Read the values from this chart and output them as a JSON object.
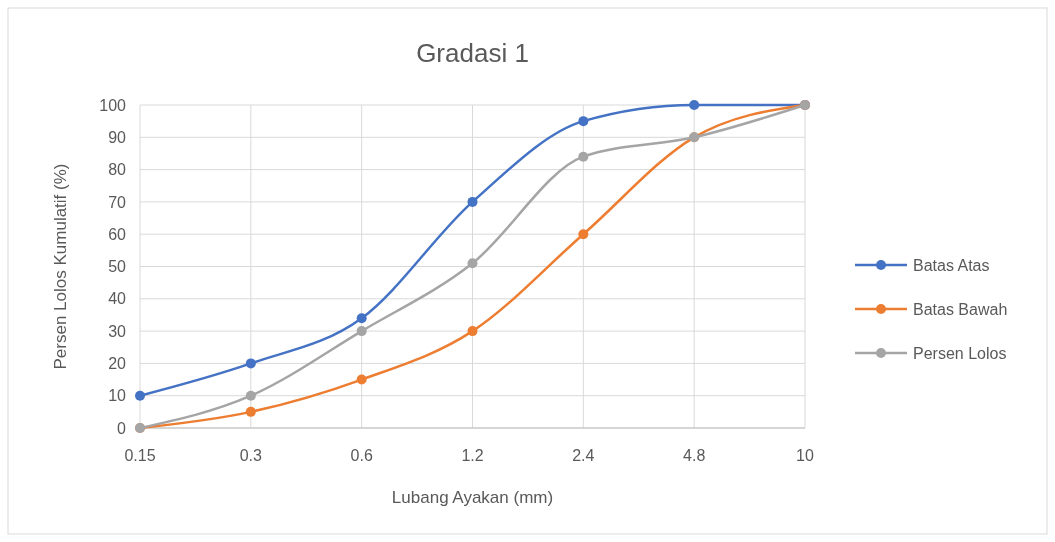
{
  "chart_data": {
    "type": "line",
    "title": "Gradasi 1",
    "xlabel": "Lubang Ayakan (mm)",
    "ylabel": "Persen Lolos Kumulatif (%)",
    "categories": [
      "0.15",
      "0.3",
      "0.6",
      "1.2",
      "2.4",
      "4.8",
      "10"
    ],
    "ylim": [
      0,
      100
    ],
    "yticks": [
      0,
      10,
      20,
      30,
      40,
      50,
      60,
      70,
      80,
      90,
      100
    ],
    "grid": true,
    "legend": "right",
    "marker": "circle",
    "line_style": "solid",
    "series": [
      {
        "name": "Batas Atas",
        "color": "#4472c4",
        "values": [
          10,
          20,
          34,
          70,
          95,
          100,
          100
        ]
      },
      {
        "name": "Batas Bawah",
        "color": "#ed7d31",
        "values": [
          0,
          5,
          15,
          30,
          60,
          90,
          100
        ]
      },
      {
        "name": "Persen Lolos",
        "color": "#a5a5a5",
        "values": [
          0,
          10,
          30,
          51,
          84,
          90,
          100
        ]
      }
    ]
  }
}
